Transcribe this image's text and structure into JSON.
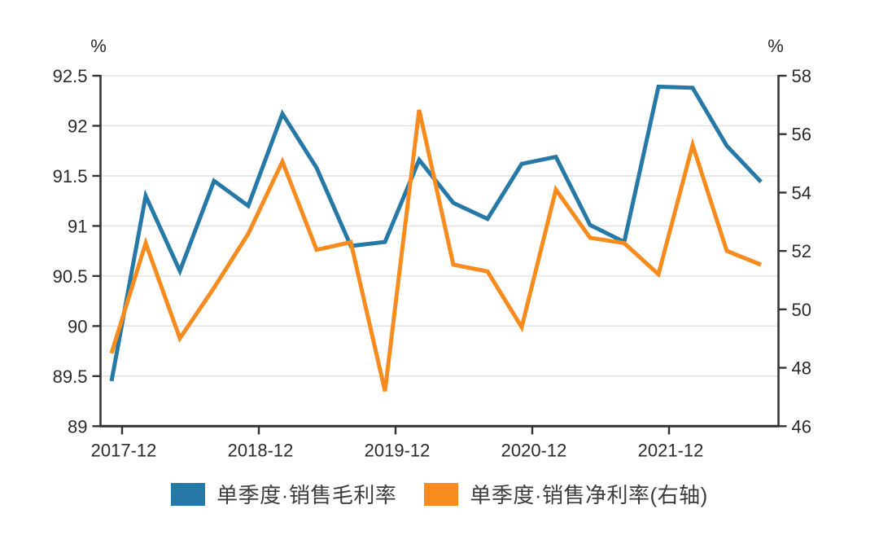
{
  "chart_data": {
    "type": "line",
    "title": "",
    "x": [
      "2017-12",
      "2018-03",
      "2018-06",
      "2018-09",
      "2018-12",
      "2019-03",
      "2019-06",
      "2019-09",
      "2019-12",
      "2020-03",
      "2020-06",
      "2020-09",
      "2020-12",
      "2021-03",
      "2021-06",
      "2021-09",
      "2021-12",
      "2022-03",
      "2022-06",
      "2022-09"
    ],
    "x_tick_labels": [
      "2017-12",
      "2018-12",
      "2019-12",
      "2020-12",
      "2021-12"
    ],
    "series": [
      {
        "name": "单季度·销售毛利率",
        "axis": "left",
        "color": "#2679a6",
        "values": [
          89.45,
          91.3,
          90.55,
          91.45,
          91.2,
          92.12,
          91.58,
          90.8,
          90.84,
          91.66,
          91.23,
          91.07,
          91.62,
          91.69,
          91.01,
          90.84,
          92.39,
          92.38,
          91.8,
          91.44
        ]
      },
      {
        "name": "单季度·销售净利率(右轴)",
        "axis": "right",
        "color": "#f78b1e",
        "values": [
          48.5,
          52.27,
          49.01,
          50.74,
          52.59,
          55.06,
          52.04,
          52.3,
          47.2,
          56.83,
          51.53,
          51.3,
          49.39,
          54.1,
          52.45,
          52.27,
          51.2,
          55.63,
          52.0,
          51.53
        ]
      }
    ],
    "left_axis": {
      "label": "%",
      "range": [
        89,
        92.5
      ],
      "ticks": [
        "89",
        "89.5",
        "90",
        "90.5",
        "91",
        "91.5",
        "92",
        "92.5"
      ]
    },
    "right_axis": {
      "label": "%",
      "range": [
        46,
        58
      ],
      "ticks": [
        "46",
        "48",
        "50",
        "52",
        "54",
        "56",
        "58"
      ]
    },
    "grid": true,
    "legend_position": "bottom",
    "colors": {
      "grid": "#e3e3e3",
      "axis": "#333333",
      "tick_text": "#2b2b2b"
    }
  }
}
